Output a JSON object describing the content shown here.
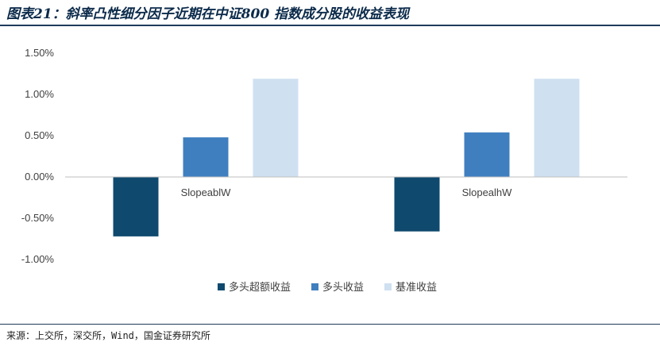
{
  "title": "图表21：斜率凸性细分因子近期在中证800 指数成分股的收益表现",
  "source": "来源：上交所，深交所，Wind，国金证券研究所",
  "colors": {
    "excess": "#0f4a6e",
    "long": "#3f7fbf",
    "benchmark": "#cfe0f1",
    "rule": "#1f3b5c"
  },
  "chart_data": {
    "type": "bar",
    "categories": [
      "SlopeablW",
      "SlopealhW"
    ],
    "series": [
      {
        "name": "多头超额收益",
        "values": [
          -0.72,
          -0.66
        ]
      },
      {
        "name": "多头收益",
        "values": [
          0.48,
          0.54
        ]
      },
      {
        "name": "基准收益",
        "values": [
          1.19,
          1.19
        ]
      }
    ],
    "yticks": [
      "1.50%",
      "1.00%",
      "0.50%",
      "0.00%",
      "-0.50%",
      "-1.00%"
    ],
    "ylim": [
      -1.0,
      1.5
    ],
    "grid": false,
    "legend_position": "bottom"
  }
}
